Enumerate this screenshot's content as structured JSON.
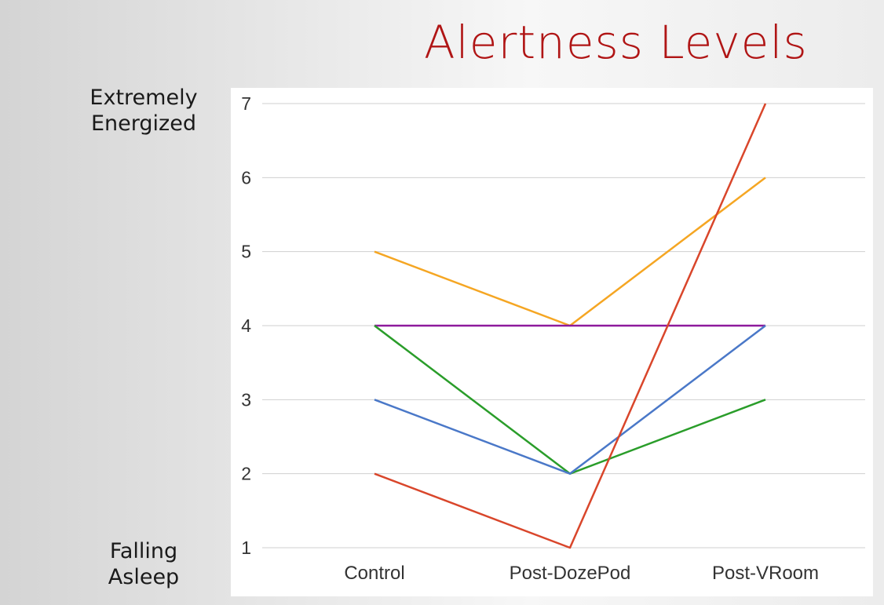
{
  "slide": {
    "title": "Alertness Levels",
    "top_label": [
      "Extremely",
      "Energized"
    ],
    "bottom_label": [
      "Falling",
      "Asleep"
    ]
  },
  "chart_data": {
    "type": "line",
    "categories": [
      "Control",
      "Post-DozePod",
      "Post-VRoom"
    ],
    "ylim": [
      1,
      7
    ],
    "yticks": [
      1,
      2,
      3,
      4,
      5,
      6,
      7
    ],
    "grid": true,
    "legend": "none",
    "series": [
      {
        "color": "#f5a623",
        "values": [
          5,
          4,
          6
        ]
      },
      {
        "color": "#8e1a9c",
        "values": [
          4,
          4,
          4
        ]
      },
      {
        "color": "#2a9d2a",
        "values": [
          4,
          2,
          3
        ]
      },
      {
        "color": "#4a78c8",
        "values": [
          3,
          2,
          4
        ]
      },
      {
        "color": "#d9462b",
        "values": [
          2,
          1,
          7
        ]
      }
    ]
  }
}
